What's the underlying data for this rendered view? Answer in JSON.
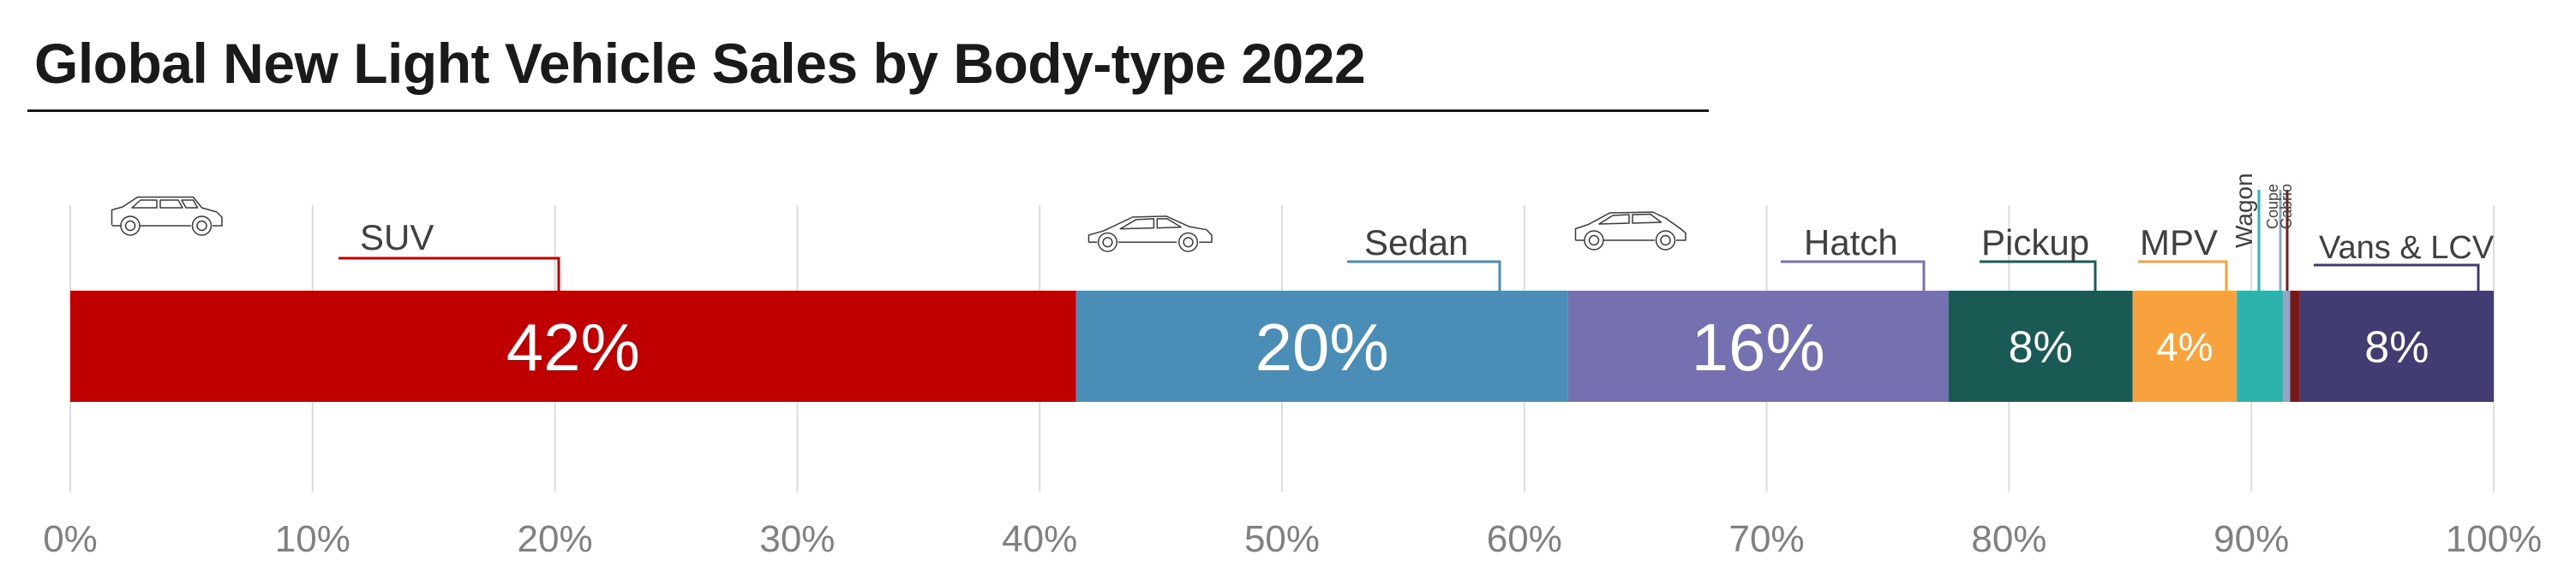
{
  "chart_data": {
    "type": "bar",
    "orientation": "horizontal-stacked-100",
    "title": "Global New Light Vehicle Sales by Body-type 2022",
    "xlim": [
      0,
      100
    ],
    "x_ticks": [
      "0%",
      "10%",
      "20%",
      "30%",
      "40%",
      "50%",
      "60%",
      "70%",
      "80%",
      "90%",
      "100%"
    ],
    "grid": true,
    "segments": [
      {
        "name": "SUV",
        "value": 41.5,
        "label": "42%",
        "color": "#c00000",
        "icon": "suv-car-icon"
      },
      {
        "name": "Sedan",
        "value": 20.3,
        "label": "20%",
        "color": "#4a8db7",
        "icon": "sedan-car-icon"
      },
      {
        "name": "Hatch",
        "value": 15.7,
        "label": "16%",
        "color": "#7570b0",
        "icon": "hatchback-car-icon"
      },
      {
        "name": "Pickup",
        "value": 7.6,
        "label": "8%",
        "color": "#1a5a55",
        "icon": ""
      },
      {
        "name": "MPV",
        "value": 4.3,
        "label": "4%",
        "color": "#f7a23c",
        "icon": ""
      },
      {
        "name": "Wagon",
        "value": 1.9,
        "label": "",
        "color": "#2db3ad",
        "icon": ""
      },
      {
        "name": "Coupe",
        "value": 0.3,
        "label": "",
        "color": "#8fa8c8",
        "icon": ""
      },
      {
        "name": "Cabrio",
        "value": 0.4,
        "label": "",
        "color": "#7a1818",
        "icon": ""
      },
      {
        "name": "Vans & LCV",
        "value": 8.0,
        "label": "8%",
        "color": "#413d72",
        "icon": ""
      }
    ]
  }
}
